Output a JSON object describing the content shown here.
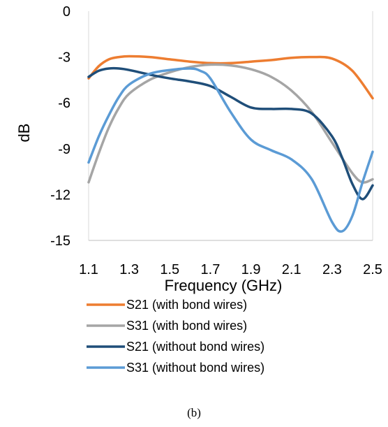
{
  "chart_data": {
    "type": "line",
    "xlabel": "Frequency (GHz)",
    "ylabel": "dB",
    "xlim": [
      1.1,
      2.5
    ],
    "ylim": [
      -15,
      0
    ],
    "xticks": [
      "1.1",
      "1.3",
      "1.5",
      "1.7",
      "1.9",
      "2.1",
      "2.3",
      "2.5"
    ],
    "yticks": [
      "0",
      "-3",
      "-6",
      "-9",
      "-12",
      "-15"
    ],
    "grid": "vertical",
    "legend_position": "bottom",
    "series": [
      {
        "name": "S21 (with bond wires)",
        "color": "#ED7D31",
        "x": [
          1.1,
          1.15,
          1.2,
          1.25,
          1.3,
          1.4,
          1.5,
          1.6,
          1.7,
          1.8,
          1.9,
          2.0,
          2.1,
          2.2,
          2.3,
          2.4,
          2.5
        ],
        "y": [
          -4.4,
          -3.6,
          -3.15,
          -3.0,
          -2.95,
          -3.0,
          -3.15,
          -3.3,
          -3.4,
          -3.4,
          -3.3,
          -3.2,
          -3.05,
          -3.0,
          -3.1,
          -3.9,
          -5.7
        ]
      },
      {
        "name": "S31 (with bond wires)",
        "color": "#A5A5A5",
        "x": [
          1.1,
          1.15,
          1.2,
          1.25,
          1.3,
          1.4,
          1.5,
          1.6,
          1.7,
          1.8,
          1.9,
          2.0,
          2.1,
          2.2,
          2.3,
          2.4,
          2.45,
          2.5
        ],
        "y": [
          -11.2,
          -9.3,
          -7.6,
          -6.3,
          -5.4,
          -4.5,
          -4.0,
          -3.65,
          -3.5,
          -3.55,
          -3.8,
          -4.3,
          -5.2,
          -6.6,
          -8.6,
          -10.6,
          -11.2,
          -11.0
        ]
      },
      {
        "name": "S21 (without bond wires)",
        "color": "#1F4E79",
        "x": [
          1.1,
          1.15,
          1.2,
          1.25,
          1.3,
          1.4,
          1.5,
          1.6,
          1.7,
          1.8,
          1.9,
          2.0,
          2.1,
          2.2,
          2.3,
          2.35,
          2.4,
          2.45,
          2.5
        ],
        "y": [
          -4.3,
          -3.9,
          -3.75,
          -3.75,
          -3.85,
          -4.15,
          -4.4,
          -4.6,
          -4.9,
          -5.6,
          -6.3,
          -6.4,
          -6.4,
          -6.7,
          -8.2,
          -9.6,
          -11.3,
          -12.3,
          -11.4
        ]
      },
      {
        "name": "S31 (without bond wires)",
        "color": "#5B9BD5",
        "x": [
          1.1,
          1.15,
          1.2,
          1.25,
          1.3,
          1.4,
          1.5,
          1.6,
          1.65,
          1.7,
          1.8,
          1.9,
          2.0,
          2.1,
          2.2,
          2.3,
          2.35,
          2.4,
          2.45,
          2.5
        ],
        "y": [
          -9.9,
          -8.2,
          -6.8,
          -5.6,
          -4.8,
          -4.1,
          -3.85,
          -3.75,
          -3.9,
          -4.4,
          -6.6,
          -8.4,
          -9.1,
          -9.7,
          -11.0,
          -13.8,
          -14.4,
          -13.4,
          -11.2,
          -9.2
        ]
      }
    ],
    "caption": "(b)"
  }
}
